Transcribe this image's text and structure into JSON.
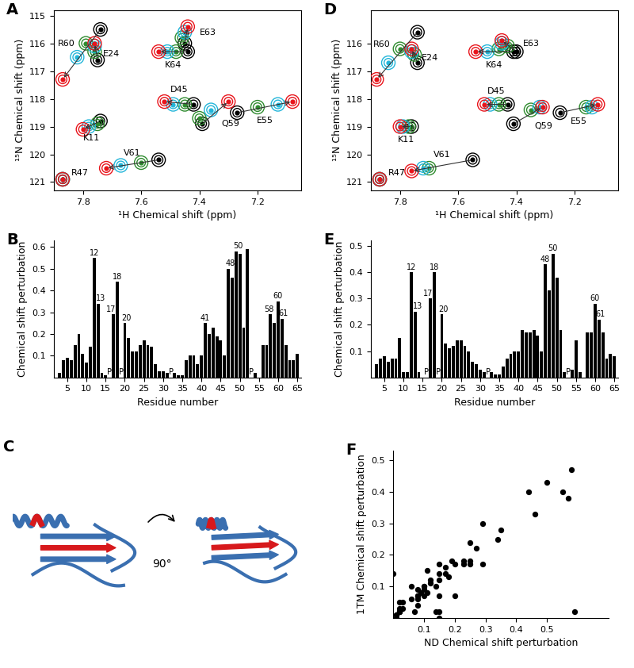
{
  "chart_data": [
    {
      "type": "scatter",
      "title": "A",
      "x_label": "¹H Chemical shift (ppm)",
      "y_label": "¹⁵N Chemical shift (ppm)",
      "xlim": [
        7.9,
        7.05
      ],
      "ylim": [
        121.3,
        114.8
      ],
      "xticks": [
        7.8,
        7.6,
        7.4,
        7.2
      ],
      "yticks": [
        115,
        116,
        117,
        118,
        119,
        120,
        121
      ],
      "colors": [
        "#000000",
        "#2e8b2e",
        "#22b5d9",
        "#e8141b"
      ],
      "peaks": [
        {
          "label": "R60",
          "x": [
            7.74,
            7.79,
            7.82,
            7.87
          ],
          "y": [
            115.5,
            116.0,
            116.5,
            117.3
          ]
        },
        {
          "label": "E24",
          "x": [
            7.75,
            7.76,
            7.76,
            7.76
          ],
          "y": [
            116.6,
            116.3,
            116.1,
            116.0
          ]
        },
        {
          "label": "E63",
          "x": [
            7.45,
            7.46,
            7.45,
            7.44
          ],
          "y": [
            116.0,
            115.8,
            115.6,
            115.4
          ]
        },
        {
          "label": "K64",
          "x": [
            7.44,
            7.48,
            7.51,
            7.54
          ],
          "y": [
            116.3,
            116.3,
            116.3,
            116.3
          ]
        },
        {
          "label": "D45",
          "x": [
            7.42,
            7.45,
            7.49,
            7.52
          ],
          "y": [
            118.2,
            118.2,
            118.2,
            118.1
          ]
        },
        {
          "label": "Q59",
          "x": [
            7.39,
            7.4,
            7.36,
            7.3
          ],
          "y": [
            118.9,
            118.7,
            118.4,
            118.1
          ]
        },
        {
          "label": "E55",
          "x": [
            7.27,
            7.2,
            7.13,
            7.08
          ],
          "y": [
            118.5,
            118.3,
            118.2,
            118.1
          ]
        },
        {
          "label": "K11",
          "x": [
            7.74,
            7.75,
            7.78,
            7.8
          ],
          "y": [
            118.8,
            118.9,
            119.0,
            119.1
          ]
        },
        {
          "label": "V61",
          "x": [
            7.54,
            7.6,
            7.67,
            7.72
          ],
          "y": [
            120.2,
            120.3,
            120.4,
            120.5
          ]
        },
        {
          "label": "R47",
          "x": [
            7.87,
            7.87,
            7.87,
            7.87
          ],
          "y": [
            120.9,
            120.9,
            120.9,
            120.9
          ]
        }
      ]
    },
    {
      "type": "bar",
      "title": "B",
      "x_label": "Residue number",
      "y_label": "Chemical shift perturbation",
      "color": "#000000",
      "x": [
        3,
        4,
        5,
        6,
        7,
        8,
        9,
        10,
        11,
        12,
        13,
        14,
        15,
        16,
        17,
        18,
        19,
        20,
        21,
        22,
        23,
        24,
        25,
        26,
        27,
        28,
        29,
        30,
        31,
        32,
        33,
        34,
        35,
        36,
        37,
        38,
        39,
        40,
        41,
        42,
        43,
        44,
        45,
        46,
        47,
        48,
        49,
        50,
        51,
        52,
        53,
        54,
        55,
        56,
        57,
        58,
        59,
        60,
        61,
        62,
        63,
        64,
        65
      ],
      "values": [
        0.02,
        0.08,
        0.09,
        0.08,
        0.15,
        0.2,
        0.11,
        0.07,
        0.14,
        0.55,
        0.34,
        0.02,
        0.01,
        null,
        0.29,
        0.44,
        null,
        0.25,
        0.18,
        0.12,
        0.12,
        0.15,
        0.17,
        0.15,
        0.14,
        0.06,
        0.03,
        0.03,
        0.02,
        null,
        0.02,
        0.01,
        0.01,
        0.08,
        0.1,
        0.1,
        0.06,
        0.1,
        0.25,
        0.2,
        0.23,
        0.19,
        0.17,
        0.1,
        0.5,
        0.46,
        0.58,
        0.57,
        0.23,
        0.59,
        null,
        0.02,
        0.0,
        0.15,
        0.15,
        0.29,
        0.25,
        0.35,
        0.27,
        0.15,
        0.08,
        0.08,
        0.11
      ],
      "xlim": [
        1.5,
        66
      ],
      "ylim": [
        0,
        0.63
      ],
      "xticks": [
        5,
        10,
        15,
        20,
        25,
        30,
        35,
        40,
        45,
        50,
        55,
        60,
        65
      ],
      "yticks": [
        0.1,
        0.2,
        0.3,
        0.4,
        0.5,
        0.6
      ],
      "annotations": [
        {
          "x": 12,
          "y": 0.55,
          "text": "12"
        },
        {
          "x": 13.7,
          "y": 0.34,
          "text": "13"
        },
        {
          "x": 16.4,
          "y": 0.29,
          "text": "17"
        },
        {
          "x": 18,
          "y": 0.44,
          "text": "18"
        },
        {
          "x": 20.3,
          "y": 0.25,
          "text": "20"
        },
        {
          "x": 41,
          "y": 0.25,
          "text": "41"
        },
        {
          "x": 47.5,
          "y": 0.5,
          "text": "48"
        },
        {
          "x": 49.5,
          "y": 0.58,
          "text": "50"
        },
        {
          "x": 57.7,
          "y": 0.29,
          "text": "58"
        },
        {
          "x": 60,
          "y": 0.35,
          "text": "60"
        },
        {
          "x": 61.4,
          "y": 0.27,
          "text": "61"
        },
        {
          "x": 16,
          "y": 0,
          "text": "P"
        },
        {
          "x": 19,
          "y": 0,
          "text": "P"
        },
        {
          "x": 32,
          "y": 0,
          "text": "P"
        },
        {
          "x": 53,
          "y": 0,
          "text": "P"
        }
      ]
    },
    {
      "type": "diagram",
      "title": "C",
      "annotations": [
        "90°"
      ]
    },
    {
      "type": "scatter",
      "title": "D",
      "x_label": "¹H Chemical shift (ppm)",
      "y_label": "¹⁵N Chemical shift (ppm)",
      "xlim": [
        7.9,
        7.05
      ],
      "ylim": [
        121.3,
        114.8
      ],
      "xticks": [
        7.8,
        7.6,
        7.4,
        7.2
      ],
      "yticks": [
        116,
        117,
        118,
        119,
        120,
        121
      ],
      "colors": [
        "#000000",
        "#2e8b2e",
        "#22b5d9",
        "#e8141b"
      ],
      "peaks": [
        {
          "label": "R60",
          "x": [
            7.74,
            7.8,
            7.84,
            7.88
          ],
          "y": [
            115.6,
            116.2,
            116.7,
            117.3
          ]
        },
        {
          "label": "E24",
          "x": [
            7.74,
            7.75,
            7.76,
            7.76
          ],
          "y": [
            116.7,
            116.4,
            116.3,
            116.2
          ]
        },
        {
          "label": "E63",
          "x": [
            7.4,
            7.43,
            7.45,
            7.45
          ],
          "y": [
            116.3,
            116.1,
            116.0,
            115.9
          ]
        },
        {
          "label": "K64",
          "x": [
            7.41,
            7.46,
            7.5,
            7.54
          ],
          "y": [
            116.3,
            116.2,
            116.3,
            116.3
          ]
        },
        {
          "label": "D45",
          "x": [
            7.43,
            7.46,
            7.49,
            7.51
          ],
          "y": [
            118.2,
            118.2,
            118.2,
            118.2
          ]
        },
        {
          "label": "Q59",
          "x": [
            7.41,
            7.35,
            7.32,
            7.31
          ],
          "y": [
            118.9,
            118.4,
            118.3,
            118.3
          ]
        },
        {
          "label": "E55",
          "x": [
            7.25,
            7.16,
            7.14,
            7.12
          ],
          "y": [
            118.5,
            118.3,
            118.3,
            118.2
          ]
        },
        {
          "label": "K11",
          "x": [
            7.76,
            7.77,
            7.79,
            7.8
          ],
          "y": [
            119.0,
            119.0,
            119.0,
            119.0
          ]
        },
        {
          "label": "V61",
          "x": [
            7.55,
            7.7,
            7.72,
            7.76
          ],
          "y": [
            120.2,
            120.5,
            120.5,
            120.6
          ]
        },
        {
          "label": "R47",
          "x": [
            7.87,
            7.87,
            7.87,
            7.87
          ],
          "y": [
            120.9,
            120.9,
            120.9,
            120.9
          ]
        }
      ]
    },
    {
      "type": "bar",
      "title": "E",
      "x_label": "Residue number",
      "y_label": "Chemical shift perturbation",
      "color": "#000000",
      "x": [
        3,
        4,
        5,
        6,
        7,
        8,
        9,
        10,
        11,
        12,
        13,
        14,
        15,
        16,
        17,
        18,
        19,
        20,
        21,
        22,
        23,
        24,
        25,
        26,
        27,
        28,
        29,
        30,
        31,
        32,
        33,
        34,
        35,
        36,
        37,
        38,
        39,
        40,
        41,
        42,
        43,
        44,
        45,
        46,
        47,
        48,
        49,
        50,
        51,
        52,
        53,
        54,
        55,
        56,
        57,
        58,
        59,
        60,
        61,
        62,
        63,
        64,
        65
      ],
      "values": [
        0.05,
        0.07,
        0.08,
        0.06,
        0.07,
        0.07,
        0.15,
        0.02,
        0.02,
        0.4,
        0.25,
        0.02,
        0.0,
        null,
        0.3,
        0.4,
        null,
        0.24,
        0.13,
        0.11,
        0.12,
        0.14,
        0.14,
        0.12,
        0.1,
        0.06,
        0.05,
        0.03,
        0.02,
        null,
        0.02,
        0.01,
        0.01,
        0.04,
        0.07,
        0.09,
        0.1,
        0.1,
        0.18,
        0.17,
        0.17,
        0.18,
        0.16,
        0.1,
        0.43,
        0.33,
        0.47,
        0.38,
        0.18,
        0.02,
        null,
        0.03,
        0.14,
        0.02,
        0.0,
        0.17,
        0.17,
        0.28,
        0.22,
        0.17,
        0.07,
        0.09,
        0.08
      ],
      "xlim": [
        1.5,
        66
      ],
      "ylim": [
        0,
        0.52
      ],
      "xticks": [
        5,
        10,
        15,
        20,
        25,
        30,
        35,
        40,
        45,
        50,
        55,
        60,
        65
      ],
      "yticks": [
        0.1,
        0.2,
        0.3,
        0.4,
        0.5
      ],
      "annotations": [
        {
          "x": 12,
          "y": 0.4,
          "text": "12"
        },
        {
          "x": 13.7,
          "y": 0.25,
          "text": "13"
        },
        {
          "x": 16.4,
          "y": 0.3,
          "text": "17"
        },
        {
          "x": 18,
          "y": 0.4,
          "text": "18"
        },
        {
          "x": 20.3,
          "y": 0.24,
          "text": "20"
        },
        {
          "x": 47,
          "y": 0.43,
          "text": "48"
        },
        {
          "x": 49,
          "y": 0.47,
          "text": "50"
        },
        {
          "x": 60,
          "y": 0.28,
          "text": "60"
        },
        {
          "x": 61.4,
          "y": 0.22,
          "text": "61"
        },
        {
          "x": 16,
          "y": 0,
          "text": "P"
        },
        {
          "x": 19,
          "y": 0,
          "text": "P"
        },
        {
          "x": 32,
          "y": 0,
          "text": "P"
        },
        {
          "x": 53,
          "y": 0,
          "text": "P"
        }
      ]
    },
    {
      "type": "scatter",
      "title": "F",
      "x_label": "ND Chemical shift perturbation",
      "y_label": "1TM Chemical shift perturbation",
      "color": "#000000",
      "x": [
        0.02,
        0.08,
        0.09,
        0.08,
        0.15,
        0.2,
        0.11,
        0.07,
        0.14,
        0.55,
        0.34,
        0.02,
        0.01,
        0.29,
        0.44,
        0.25,
        0.18,
        0.12,
        0.12,
        0.15,
        0.17,
        0.15,
        0.14,
        0.06,
        0.03,
        0.03,
        0.02,
        0.02,
        0.01,
        0.01,
        0.08,
        0.1,
        0.1,
        0.06,
        0.1,
        0.25,
        0.2,
        0.23,
        0.19,
        0.17,
        0.1,
        0.5,
        0.46,
        0.58,
        0.57,
        0.23,
        0.59,
        0.02,
        0.0,
        0.15,
        0.15,
        0.29,
        0.25,
        0.35,
        0.27,
        0.15,
        0.08,
        0.08,
        0.11
      ],
      "y": [
        0.05,
        0.07,
        0.08,
        0.06,
        0.07,
        0.07,
        0.15,
        0.02,
        0.02,
        0.4,
        0.25,
        0.02,
        0.0,
        0.3,
        0.4,
        0.24,
        0.13,
        0.11,
        0.12,
        0.14,
        0.14,
        0.12,
        0.1,
        0.06,
        0.05,
        0.03,
        0.02,
        0.02,
        0.01,
        0.01,
        0.04,
        0.07,
        0.09,
        0.1,
        0.1,
        0.18,
        0.17,
        0.17,
        0.18,
        0.16,
        0.1,
        0.43,
        0.33,
        0.47,
        0.38,
        0.18,
        0.02,
        0.03,
        0.14,
        0.02,
        0.0,
        0.17,
        0.17,
        0.28,
        0.22,
        0.17,
        0.07,
        0.09,
        0.08
      ],
      "xlim": [
        0,
        0.7
      ],
      "ylim": [
        0,
        0.53
      ],
      "xticks": [
        0.1,
        0.2,
        0.3,
        0.4,
        0.5
      ],
      "yticks": [
        0.1,
        0.2,
        0.3,
        0.4,
        0.5
      ]
    }
  ]
}
